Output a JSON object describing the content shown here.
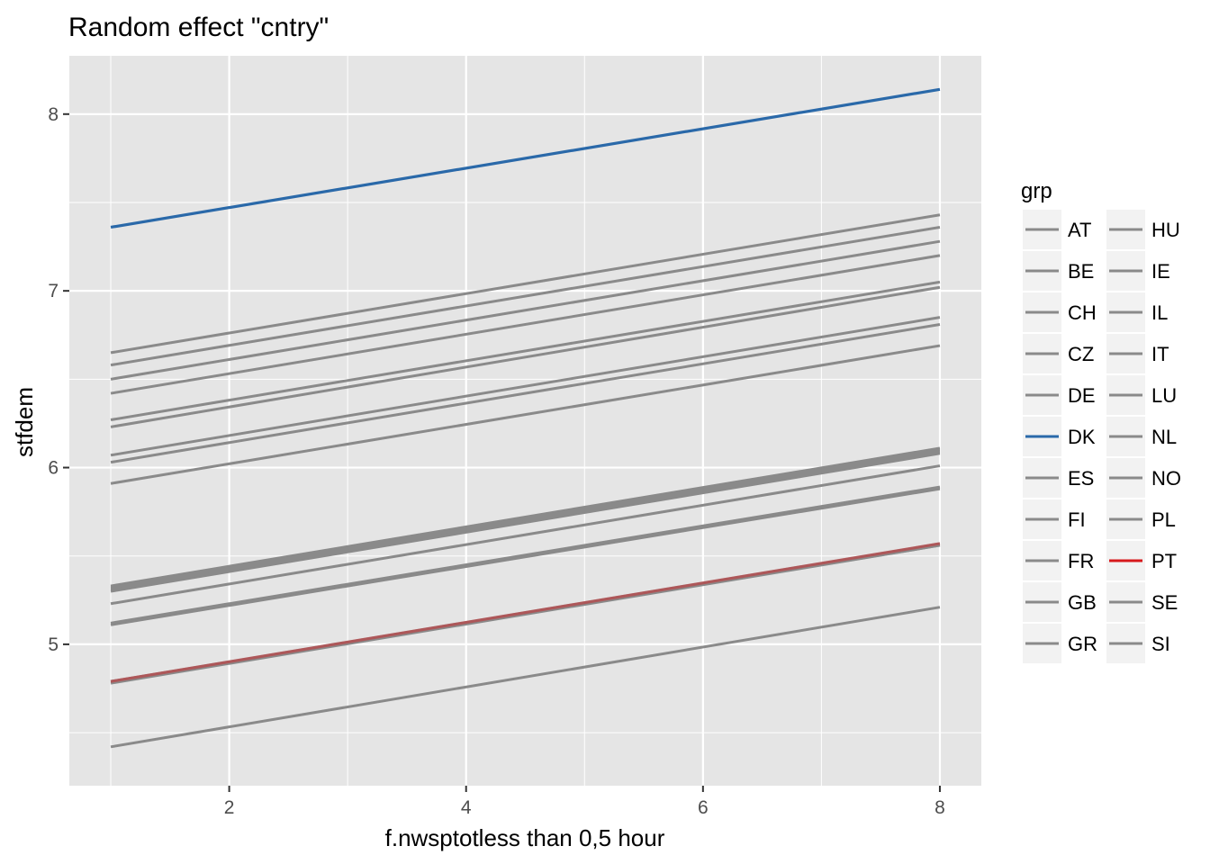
{
  "chart_data": {
    "type": "line",
    "title": "Random effect \"cntry\"",
    "xlabel": "f.nwsptotless than 0,5 hour",
    "ylabel": "stfdem",
    "xlim": [
      0.65,
      8.35
    ],
    "ylim": [
      4.2,
      8.33
    ],
    "x_ticks": [
      2,
      4,
      6,
      8
    ],
    "y_ticks": [
      5,
      6,
      7,
      8
    ],
    "x_tick_labels": [
      "2",
      "4",
      "6",
      "8"
    ],
    "y_tick_labels": [
      "5",
      "6",
      "7",
      "8"
    ],
    "grid": true,
    "legend": {
      "title": "grp",
      "position": "right",
      "columns": 2
    },
    "colors": {
      "default": "#8a8a8a",
      "DK": "#2a69a9",
      "PT": "#d7191c",
      "panel_bg": "#e5e5e5",
      "grid": "#ffffff"
    },
    "x": [
      1,
      8
    ],
    "series": [
      {
        "name": "AT",
        "values": [
          5.33,
          6.11
        ]
      },
      {
        "name": "BE",
        "values": [
          6.23,
          7.02
        ]
      },
      {
        "name": "CH",
        "values": [
          6.65,
          7.43
        ]
      },
      {
        "name": "CZ",
        "values": [
          4.79,
          5.57
        ]
      },
      {
        "name": "DE",
        "values": [
          6.58,
          7.36
        ]
      },
      {
        "name": "DK",
        "values": [
          7.36,
          8.14
        ]
      },
      {
        "name": "ES",
        "values": [
          5.23,
          6.01
        ]
      },
      {
        "name": "FI",
        "values": [
          6.5,
          7.28
        ]
      },
      {
        "name": "FR",
        "values": [
          5.12,
          5.89
        ]
      },
      {
        "name": "GB",
        "values": [
          5.3,
          6.08
        ]
      },
      {
        "name": "GR",
        "values": [
          4.78,
          5.56
        ]
      },
      {
        "name": "HU",
        "values": [
          4.42,
          5.21
        ]
      },
      {
        "name": "IE",
        "values": [
          6.07,
          6.85
        ]
      },
      {
        "name": "IL",
        "values": [
          6.03,
          6.81
        ]
      },
      {
        "name": "IT",
        "values": [
          5.11,
          5.88
        ]
      },
      {
        "name": "LU",
        "values": [
          6.42,
          7.2
        ]
      },
      {
        "name": "NL",
        "values": [
          6.27,
          7.05
        ]
      },
      {
        "name": "NO",
        "values": [
          5.31,
          6.09
        ]
      },
      {
        "name": "PL",
        "values": [
          5.32,
          6.1
        ]
      },
      {
        "name": "PT",
        "values": [
          4.79,
          5.57
        ]
      },
      {
        "name": "SE",
        "values": [
          5.91,
          6.69
        ]
      },
      {
        "name": "SI",
        "values": [
          4.79,
          5.56
        ]
      }
    ]
  }
}
